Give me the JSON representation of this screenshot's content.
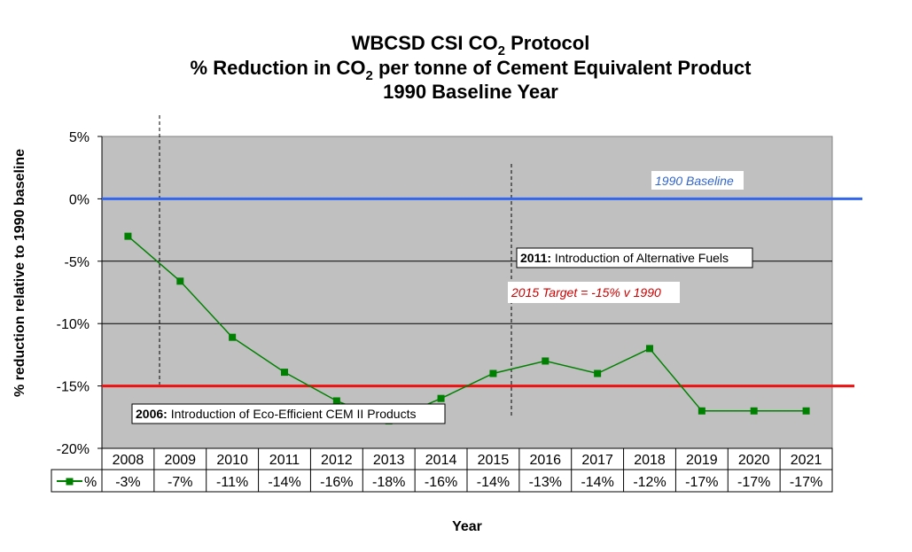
{
  "chart_data": {
    "type": "line",
    "title": {
      "line1_main": "WBCSD CSI CO",
      "line1_sub": "2",
      "line1_end": " Protocol",
      "line2_main": "% Reduction in CO",
      "line2_sub": "2",
      "line2_end": " per tonne of Cement Equivalent Product",
      "line3": "1990 Baseline Year"
    },
    "xlabel": "Year",
    "ylabel": "% reduction relative to 1990 baseline",
    "categories": [
      "2008",
      "2009",
      "2010",
      "2011",
      "2012",
      "2013",
      "2014",
      "2015",
      "2016",
      "2017",
      "2018",
      "2019",
      "2020",
      "2021"
    ],
    "series": [
      {
        "name": "%",
        "color": "#008000",
        "marker": "square",
        "values": [
          -3,
          -6.6,
          -11.1,
          -13.9,
          -16.2,
          -17.8,
          -16,
          -14,
          -13,
          -14,
          -12,
          -17,
          -17,
          -17
        ],
        "table_labels": [
          "-3%",
          "-7%",
          "-11%",
          "-14%",
          "-16%",
          "-18%",
          "-16%",
          "-14%",
          "-13%",
          "-14%",
          "-12%",
          "-17%",
          "-17%",
          "-17%"
        ]
      }
    ],
    "ylim": [
      -20,
      5
    ],
    "yticks": [
      5,
      0,
      -5,
      -10,
      -15,
      -20
    ],
    "ytick_labels": [
      "5%",
      "0%",
      "-5%",
      "-10%",
      "-15%",
      "-20%"
    ],
    "grid": true,
    "plot_background": "#c0c0c0",
    "reference_lines": [
      {
        "value": 0,
        "label": "1990 Baseline",
        "color": "#3366cc"
      },
      {
        "value": -15,
        "label": "2015 Target = -15% v 1990",
        "color": "#cc0000"
      }
    ],
    "annotations": [
      {
        "year_bold": "2006:",
        "text": " Introduction of Eco-Efficient CEM II Products"
      },
      {
        "year_bold": "2011:",
        "text": " Introduction of Alternative Fuels"
      }
    ]
  }
}
